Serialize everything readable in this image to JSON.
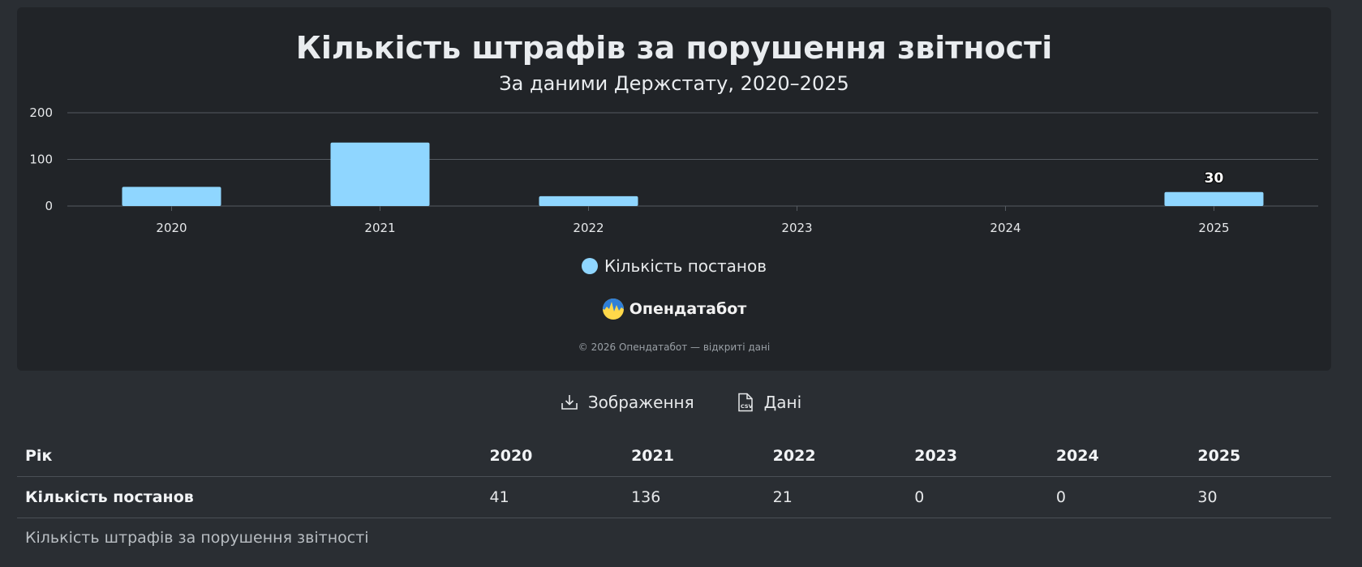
{
  "chart_data": {
    "type": "bar",
    "title": "Кількість штрафів за порушення звітності",
    "subtitle": "За даними Держстату, 2020–2025",
    "categories": [
      "2020",
      "2021",
      "2022",
      "2023",
      "2024",
      "2025"
    ],
    "series": [
      {
        "name": "Кількість постанов",
        "values": [
          41,
          136,
          21,
          0,
          0,
          30
        ],
        "color": "#8fd6ff"
      }
    ],
    "ylim": [
      0,
      200
    ],
    "yticks": [
      0,
      100,
      200
    ],
    "data_labels": [
      {
        "category": "2025",
        "value": 30,
        "text": "30"
      }
    ],
    "grid": true,
    "legend_position": "bottom-center"
  },
  "brand": {
    "name": "Опендатабот",
    "logo_icon": "opendatabot-logo-icon"
  },
  "copyright": "© 2026 Опендатабот — відкриті дані",
  "toolbar": {
    "image_label": "Зображення",
    "data_label": "Дані"
  },
  "table": {
    "header_label": "Рік",
    "years": [
      "2020",
      "2021",
      "2022",
      "2023",
      "2024",
      "2025"
    ],
    "row_label": "Кількість постанов",
    "values": [
      "41",
      "136",
      "21",
      "0",
      "0",
      "30"
    ]
  },
  "caption": "Кількість штрафів за порушення звітності"
}
